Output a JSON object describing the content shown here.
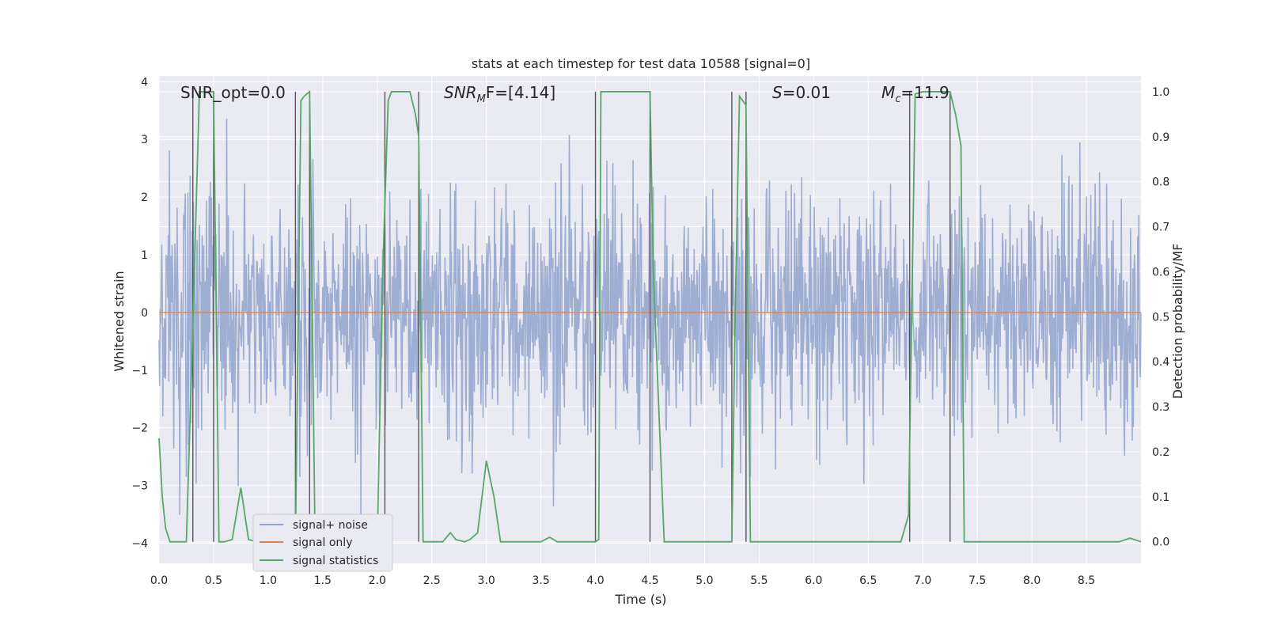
{
  "chart_data": {
    "type": "line",
    "title": "stats at each timestep for test data 10588 [signal=0]",
    "xlabel": "Time (s)",
    "ylabel": "Whitened strain",
    "y2label": "Detection probability/MF",
    "xlim": [
      0.0,
      9.0
    ],
    "ylim": [
      -4.35,
      4.1
    ],
    "y2lim": [
      -0.048,
      1.035
    ],
    "xticks": [
      "0.0",
      "0.5",
      "1.0",
      "1.5",
      "2.0",
      "2.5",
      "3.0",
      "3.5",
      "4.0",
      "4.5",
      "5.0",
      "5.5",
      "6.0",
      "6.5",
      "7.0",
      "7.5",
      "8.0",
      "8.5"
    ],
    "yticks": [
      "4",
      "3",
      "2",
      "1",
      "0",
      "−1",
      "−2",
      "−3",
      "−4"
    ],
    "y2ticks": [
      "1.0",
      "0.9",
      "0.8",
      "0.7",
      "0.6",
      "0.5",
      "0.4",
      "0.3",
      "0.2",
      "0.1",
      "0.0"
    ],
    "annotations": {
      "snr_opt": "SNR_opt=0.0",
      "snr_mf_sym": "SNR",
      "snr_mf_sub": "M",
      "snr_mf_rest": "F=[4.14]",
      "s_sym": "S",
      "s_rest": "=0.01",
      "mc_sym": "M",
      "mc_sub": "c",
      "mc_rest": "=11.9"
    },
    "legend": {
      "position": "lower-left",
      "entries": [
        {
          "label": "signal+ noise",
          "color": "#8fa3cc"
        },
        {
          "label": "signal only",
          "color": "#dd8452"
        },
        {
          "label": "signal statistics",
          "color": "#55a868"
        }
      ]
    },
    "series": [
      {
        "name": "signal+ noise",
        "axis": "left",
        "description": "whitened noise trace, mostly between -2 and 2 with spikes to about +/-3.7",
        "envelope_typical": [
          -1.9,
          2.0
        ],
        "peak_range": [
          -3.8,
          3.7
        ],
        "color": "#8fa3cc"
      },
      {
        "name": "signal only",
        "axis": "left",
        "x": [
          0.0,
          9.0
        ],
        "y": [
          0.0,
          0.0
        ],
        "color": "#dd8452"
      },
      {
        "name": "signal statistics",
        "axis": "right",
        "color": "#55a868",
        "x": [
          0.0,
          0.03,
          0.06,
          0.1,
          0.25,
          0.3,
          0.37,
          0.42,
          0.45,
          0.5,
          0.55,
          0.6,
          0.67,
          0.75,
          0.82,
          0.9,
          1.0,
          1.1,
          1.2,
          1.25,
          1.3,
          1.33,
          1.38,
          1.43,
          1.5,
          1.7,
          1.9,
          2.0,
          2.05,
          2.1,
          2.13,
          2.2,
          2.3,
          2.35,
          2.38,
          2.42,
          2.5,
          2.6,
          2.67,
          2.72,
          2.8,
          2.85,
          2.92,
          3.0,
          3.07,
          3.13,
          3.2,
          3.3,
          3.5,
          3.58,
          3.65,
          3.8,
          4.0,
          4.03,
          4.05,
          4.5,
          4.53,
          4.63,
          4.7,
          4.8,
          4.9,
          5.0,
          5.25,
          5.28,
          5.32,
          5.38,
          5.42,
          5.48,
          5.55,
          6.0,
          6.5,
          6.8,
          6.87,
          6.93,
          7.0,
          7.2,
          7.25,
          7.3,
          7.35,
          7.38,
          7.45,
          7.5,
          8.0,
          8.5,
          8.8,
          8.9,
          9.0
        ],
        "y": [
          0.23,
          0.1,
          0.03,
          0.0,
          0.0,
          0.4,
          1.0,
          1.0,
          1.0,
          1.0,
          0.0,
          0.0,
          0.005,
          0.12,
          0.005,
          0.0,
          0.0,
          0.0,
          0.0,
          0.0,
          0.98,
          0.99,
          1.0,
          0.0,
          0.0,
          0.0,
          0.0,
          0.0,
          0.6,
          0.98,
          1.0,
          1.0,
          1.0,
          0.95,
          0.9,
          0.0,
          0.0,
          0.0,
          0.02,
          0.005,
          0.0,
          0.005,
          0.02,
          0.18,
          0.1,
          0.0,
          0.0,
          0.0,
          0.0,
          0.01,
          0.0,
          0.0,
          0.0,
          0.005,
          1.0,
          1.0,
          0.6,
          0.0,
          0.0,
          0.0,
          0.0,
          0.0,
          0.0,
          0.5,
          0.99,
          0.97,
          0.0,
          0.0,
          0.0,
          0.0,
          0.0,
          0.0,
          0.06,
          0.995,
          1.0,
          1.0,
          1.0,
          0.95,
          0.88,
          0.0,
          0.0,
          0.0,
          0.0,
          0.0,
          0.0,
          0.008,
          0.0
        ]
      }
    ],
    "vertical_lines_x": [
      0.31,
      0.5,
      1.25,
      1.38,
      2.07,
      2.38,
      4.0,
      4.5,
      5.25,
      5.38,
      6.88,
      7.25
    ]
  }
}
